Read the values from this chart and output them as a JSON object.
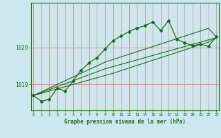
{
  "title": "Graphe pression niveau de la mer (hPa)",
  "background_color": "#cce8ee",
  "grid_color": "#d08080",
  "line_color": "#1a6b1a",
  "x_ticks": [
    0,
    1,
    2,
    3,
    4,
    5,
    6,
    7,
    8,
    9,
    10,
    11,
    12,
    13,
    14,
    15,
    16,
    17,
    18,
    19,
    20,
    21,
    22,
    23
  ],
  "y_ticks": [
    1019,
    1020
  ],
  "ylim": [
    1018.3,
    1021.2
  ],
  "xlim": [
    -0.3,
    23.3
  ],
  "main_line": [
    1018.7,
    1018.55,
    1018.6,
    1018.9,
    1018.82,
    1019.1,
    1019.38,
    1019.58,
    1019.72,
    1019.95,
    1020.18,
    1020.3,
    1020.42,
    1020.52,
    1020.58,
    1020.68,
    1020.45,
    1020.72,
    1020.22,
    1020.12,
    1020.05,
    1020.08,
    1020.03,
    1020.28
  ],
  "trend_line1": [
    1018.7,
    1018.78,
    1018.86,
    1018.94,
    1019.02,
    1019.1,
    1019.18,
    1019.26,
    1019.34,
    1019.42,
    1019.48,
    1019.54,
    1019.6,
    1019.66,
    1019.72,
    1019.78,
    1019.84,
    1019.9,
    1019.96,
    1020.02,
    1020.08,
    1020.14,
    1020.2,
    1020.26
  ],
  "trend_line2": [
    1018.7,
    1018.8,
    1018.9,
    1019.0,
    1019.1,
    1019.2,
    1019.3,
    1019.4,
    1019.5,
    1019.6,
    1019.67,
    1019.74,
    1019.81,
    1019.88,
    1019.95,
    1020.02,
    1020.09,
    1020.16,
    1020.23,
    1020.3,
    1020.37,
    1020.44,
    1020.51,
    1020.28
  ],
  "trend_line3": [
    1018.7,
    1018.76,
    1018.82,
    1018.88,
    1018.94,
    1019.0,
    1019.06,
    1019.12,
    1019.18,
    1019.24,
    1019.3,
    1019.37,
    1019.44,
    1019.51,
    1019.58,
    1019.65,
    1019.72,
    1019.79,
    1019.86,
    1019.93,
    1020.0,
    1020.07,
    1020.14,
    1020.26
  ]
}
